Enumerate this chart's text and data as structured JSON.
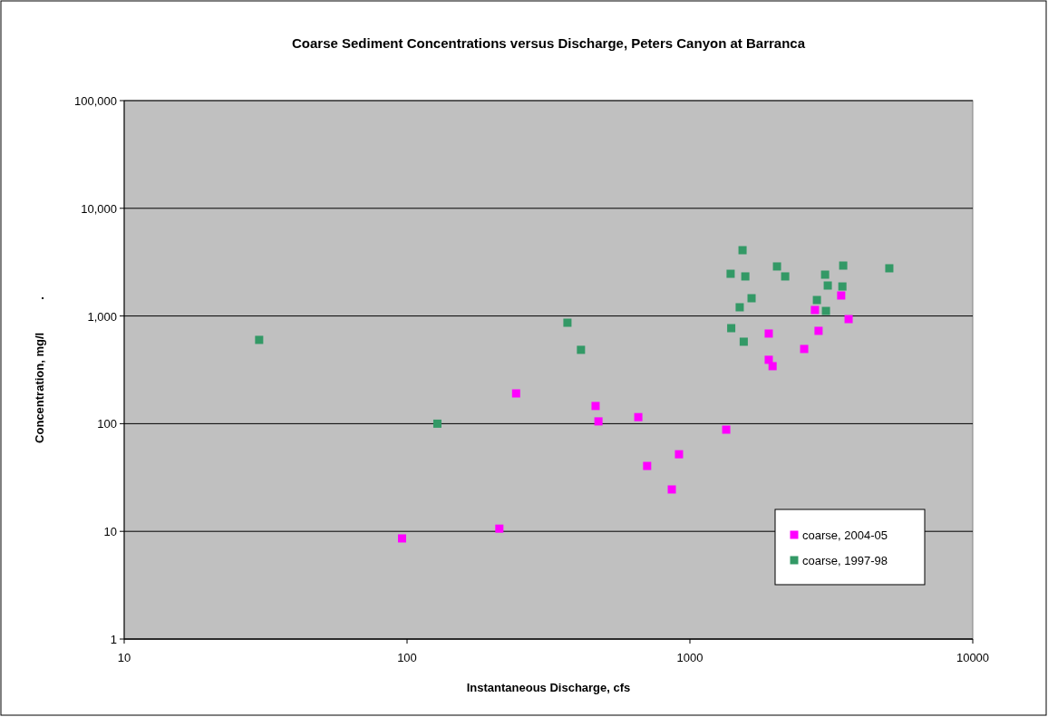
{
  "chart_data": {
    "type": "scatter",
    "title": "Coarse Sediment Concentrations versus Discharge, Peters Canyon at Barranca",
    "xlabel": "Instantaneous Discharge, cfs",
    "ylabel": "Concentration, mg/l          .",
    "log": "xy",
    "grid": "y",
    "legend": "bottom right",
    "marker": "square",
    "xlim": [
      10,
      10000
    ],
    "xticks": [
      10,
      100,
      1000,
      10000
    ],
    "ylim": [
      1,
      100000
    ],
    "yticks": [
      1,
      10,
      100,
      {
        "value": 1000,
        "label": "1,000"
      },
      {
        "value": 10000,
        "label": "10,000"
      },
      {
        "value": 100000,
        "label": "100,000"
      }
    ],
    "series": [
      {
        "name": "coarse, 2004-05",
        "color": "#ff00ff",
        "x": [
          96,
          212,
          243,
          464,
          475,
          657,
          706,
          863,
          915,
          1344,
          1900,
          1900,
          1960,
          2535,
          2767,
          2850,
          3426,
          3640
        ],
        "values": [
          8.6,
          10.6,
          191,
          146,
          105,
          115,
          40.5,
          24.5,
          52,
          88,
          687,
          392,
          342,
          494,
          1137,
          728,
          1550,
          936
        ]
      },
      {
        "name": "coarse, 1997-98",
        "color": "#339966",
        "x": [
          30,
          128,
          369,
          412,
          1393,
          1400,
          1535,
          1570,
          1500,
          1550,
          1652,
          2032,
          2172,
          3006,
          3072,
          2812,
          3027,
          3483,
          3460,
          5070
        ],
        "values": [
          600,
          100,
          866,
          485,
          2466,
          771,
          4083,
          2330,
          1205,
          577,
          1462,
          2884,
          2330,
          2420,
          1918,
          1407,
          1114,
          2938,
          1880,
          2773
        ]
      }
    ]
  }
}
